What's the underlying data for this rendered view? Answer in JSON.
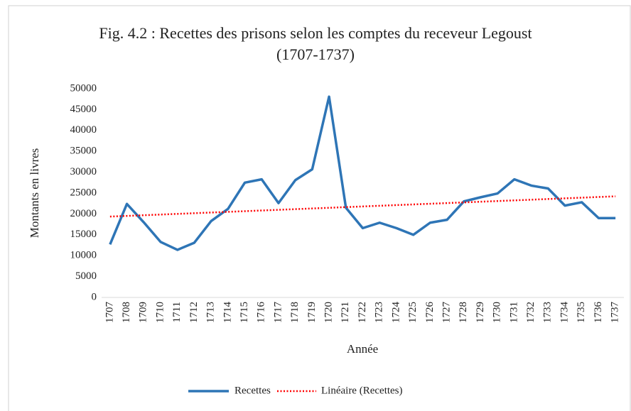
{
  "chart_data": {
    "type": "line",
    "title": "Fig. 4.2 : Recettes des prisons selon les comptes du receveur Legoust (1707-1737)",
    "x_label": "Année",
    "y_label": "Montants en livres",
    "categories": [
      "1707",
      "1708",
      "1709",
      "1710",
      "1711",
      "1712",
      "1713",
      "1714",
      "1715",
      "1716",
      "1717",
      "1718",
      "1719",
      "1720",
      "1721",
      "1722",
      "1723",
      "1724",
      "1725",
      "1726",
      "1727",
      "1728",
      "1729",
      "1730",
      "1731",
      "1732",
      "1733",
      "1734",
      "1735",
      "1736",
      "1737"
    ],
    "series": [
      {
        "name": "Recettes",
        "color": "#2e75b6",
        "values": [
          12700,
          22400,
          18000,
          13300,
          11400,
          13100,
          18300,
          21200,
          27500,
          28300,
          22600,
          28100,
          30700,
          48100,
          21500,
          16600,
          17900,
          16600,
          15000,
          17900,
          18600,
          23000,
          24000,
          24900,
          28300,
          26800,
          26100,
          22000,
          22800,
          19000,
          19000
        ]
      }
    ],
    "trendline": {
      "name": "Linéaire (Recettes)",
      "color": "#ff0000",
      "fit": "linear"
    },
    "ylim": [
      0,
      50000
    ],
    "yticks": [
      0,
      5000,
      10000,
      15000,
      20000,
      25000,
      30000,
      35000,
      40000,
      45000,
      50000
    ],
    "grid": false,
    "legend": "bottom"
  }
}
